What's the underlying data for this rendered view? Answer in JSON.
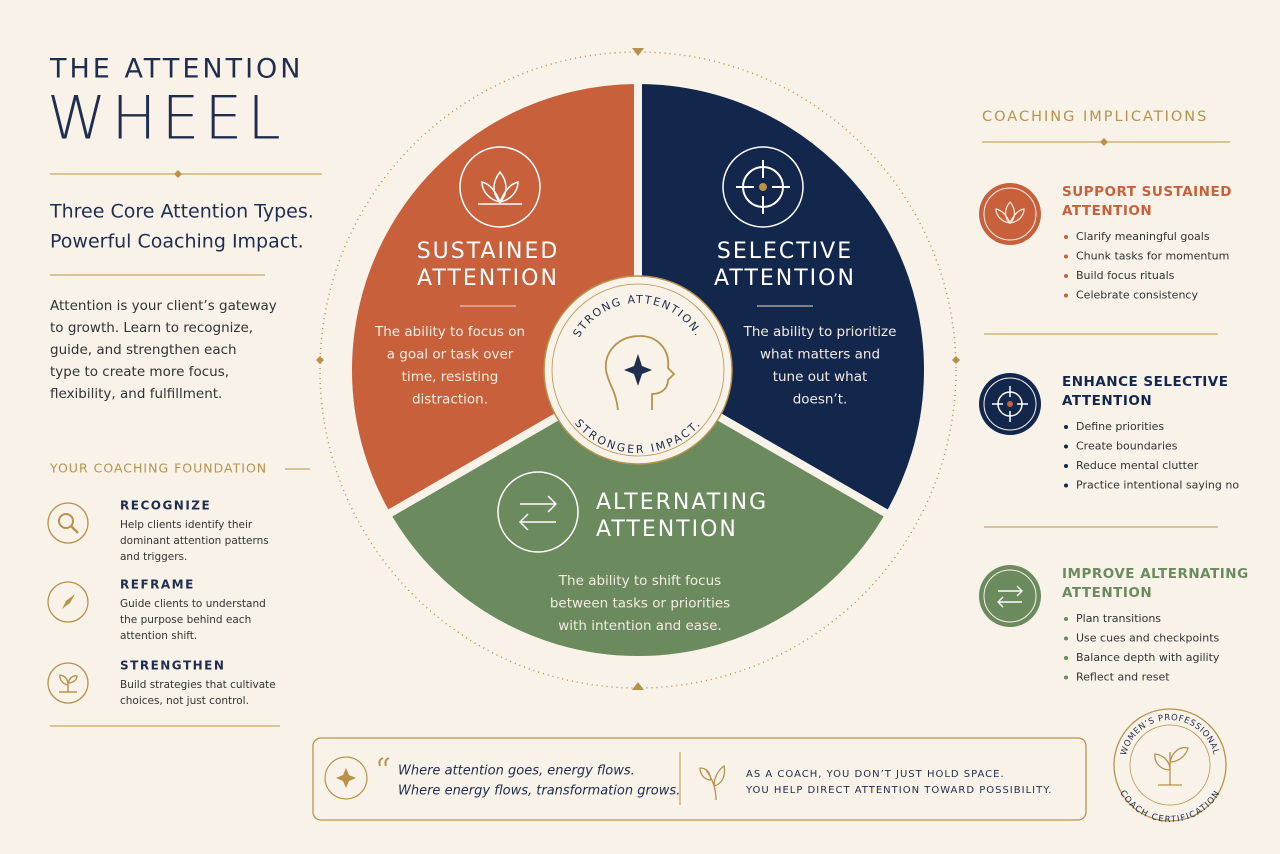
{
  "header": {
    "title_top": "THE ATTENTION",
    "title_main": "WHEEL",
    "tagline": [
      "Three Core Attention Types.",
      "Powerful Coaching Impact."
    ],
    "intro": [
      "Attention is your client’s gateway",
      "to growth. Learn to recognize,",
      "guide, and strengthen each",
      "type to create more focus,",
      "flexibility, and fulfillment."
    ]
  },
  "foundation": {
    "title": "YOUR COACHING FOUNDATION",
    "items": [
      {
        "heading": "RECOGNIZE",
        "text": [
          "Help clients identify their",
          "dominant attention patterns",
          "and triggers."
        ]
      },
      {
        "heading": "REFRAME",
        "text": [
          "Guide clients to understand",
          "the purpose behind each",
          "attention shift."
        ]
      },
      {
        "heading": "STRENGTHEN",
        "text": [
          "Build strategies that cultivate",
          "choices, not just control."
        ]
      }
    ]
  },
  "wheel": {
    "segments": [
      {
        "title": [
          "SUSTAINED",
          "ATTENTION"
        ],
        "text": [
          "The ability to focus on",
          "a goal or task over",
          "time, resisting",
          "distraction."
        ]
      },
      {
        "title": [
          "SELECTIVE",
          "ATTENTION"
        ],
        "text": [
          "The ability to prioritize",
          "what matters and",
          "tune out what",
          "doesn’t."
        ]
      },
      {
        "title": [
          "ALTERNATING",
          "ATTENTION"
        ],
        "text": [
          "The ability to shift focus",
          "between tasks or priorities",
          "with intention and ease."
        ]
      }
    ],
    "center": {
      "top": "STRONG ATTENTION.",
      "bottom": "STRONGER IMPACT."
    }
  },
  "implications": {
    "title": "COACHING IMPLICATIONS",
    "items": [
      {
        "heading": [
          "SUPPORT SUSTAINED",
          "ATTENTION"
        ],
        "bullets": [
          "Clarify meaningful goals",
          "Chunk tasks for momentum",
          "Build focus rituals",
          "Celebrate consistency"
        ]
      },
      {
        "heading": [
          "ENHANCE SELECTIVE",
          "ATTENTION"
        ],
        "bullets": [
          "Define priorities",
          "Create boundaries",
          "Reduce mental clutter",
          "Practice intentional saying no"
        ]
      },
      {
        "heading": [
          "IMPROVE ALTERNATING",
          "ATTENTION"
        ],
        "bullets": [
          "Plan transitions",
          "Use cues and checkpoints",
          "Balance depth with agility",
          "Reflect and reset"
        ]
      }
    ]
  },
  "quote": {
    "lines": [
      "Where attention goes, energy flows.",
      "Where energy flows, transformation grows."
    ],
    "note": [
      "AS A COACH, YOU DON’T JUST HOLD SPACE.",
      "YOU HELP DIRECT ATTENTION TOWARD POSSIBILITY."
    ]
  },
  "badge": {
    "top": "WOMEN’S PROFESSIONAL",
    "bottom": "COACH CERTIFICATION"
  }
}
